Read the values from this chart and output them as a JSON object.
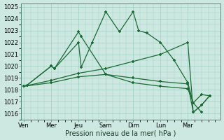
{
  "xlabel": "Pression niveau de la mer( hPa )",
  "ylim": [
    1015.5,
    1025.3
  ],
  "yticks": [
    1016,
    1017,
    1018,
    1019,
    1020,
    1021,
    1022,
    1023,
    1024,
    1025
  ],
  "x_labels": [
    "Ven",
    "Mer",
    "Jeu",
    "Sam",
    "Dim",
    "Lun",
    "Mar"
  ],
  "x_positions": [
    0,
    1,
    2,
    3,
    4,
    5,
    6
  ],
  "xlim": [
    -0.1,
    7.2
  ],
  "background_color": "#cce8e0",
  "grid_color": "#a0cdc4",
  "line_color": "#1a6b35",
  "series1_x": [
    0,
    0.12,
    1.0,
    1.12,
    2.0,
    2.1,
    2.5,
    3.0,
    3.5,
    4.0,
    4.2,
    4.5,
    5.0,
    5.5,
    6.0,
    6.2,
    6.5
  ],
  "series1_y": [
    1018.3,
    1018.4,
    1020.0,
    1019.8,
    1022.0,
    1019.9,
    1022.0,
    1024.6,
    1022.9,
    1024.6,
    1023.0,
    1022.8,
    1022.0,
    1020.5,
    1018.6,
    1016.9,
    1016.1
  ],
  "series2_x": [
    0,
    0.12,
    1.0,
    1.12,
    2.0,
    2.1,
    3.0,
    4.0,
    5.0,
    6.0,
    6.2,
    6.5,
    6.8
  ],
  "series2_y": [
    1018.3,
    1018.4,
    1020.0,
    1019.8,
    1022.9,
    1022.5,
    1019.3,
    1018.6,
    1018.3,
    1018.1,
    1016.9,
    1017.6,
    1017.5
  ],
  "series3_x": [
    0,
    1.0,
    2.0,
    3.0,
    4.0,
    5.0,
    6.0,
    6.2,
    6.5,
    6.8
  ],
  "series3_y": [
    1018.3,
    1018.6,
    1019.1,
    1019.3,
    1019.0,
    1018.7,
    1018.5,
    1016.1,
    1016.7,
    1017.5
  ],
  "series4_x": [
    0,
    1.0,
    2.0,
    3.0,
    4.0,
    5.0,
    6.0,
    6.2,
    6.5,
    6.8
  ],
  "series4_y": [
    1018.3,
    1018.8,
    1019.4,
    1019.8,
    1020.4,
    1021.0,
    1022.0,
    1016.1,
    1016.7,
    1017.5
  ]
}
